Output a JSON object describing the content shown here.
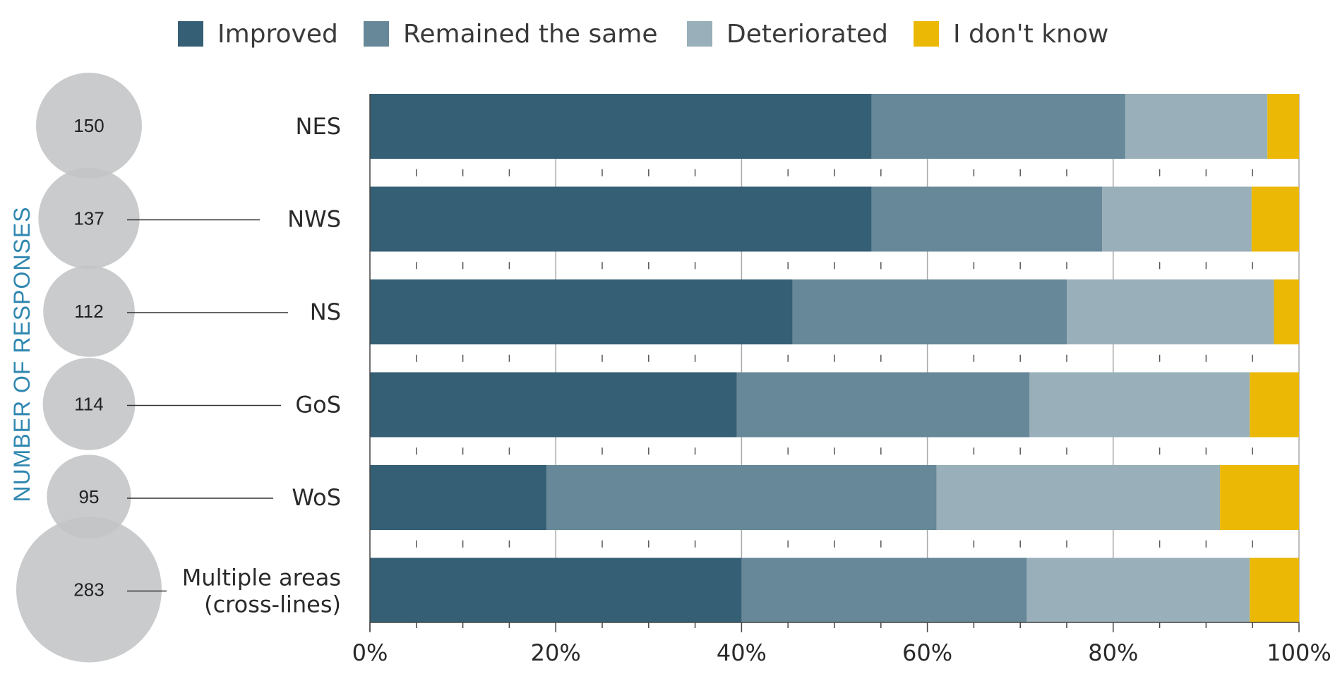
{
  "chart_data": {
    "type": "bar",
    "orientation": "horizontal",
    "stacked": true,
    "percent_stacked": true,
    "categories": [
      "NES",
      "NWS",
      "NS",
      "GoS",
      "WoS",
      "Multiple areas\n(cross-lines)"
    ],
    "series": [
      {
        "name": "Improved",
        "color": "#355f75",
        "values": [
          54,
          54,
          45.5,
          39.5,
          19,
          40
        ]
      },
      {
        "name": "Remained the same",
        "color": "#678898",
        "values": [
          27.3,
          24.8,
          29.5,
          31.5,
          42,
          30.7
        ]
      },
      {
        "name": "Deteriorated",
        "color": "#99afb9",
        "values": [
          15.3,
          16.1,
          22.3,
          23.7,
          30.5,
          24
        ]
      },
      {
        "name": "I don't know",
        "color": "#ebb806",
        "values": [
          3.4,
          5.1,
          2.7,
          5.3,
          8.5,
          5.3
        ]
      }
    ],
    "xlim": [
      0,
      100
    ],
    "x_ticks": [
      "0%",
      "20%",
      "40%",
      "60%",
      "80%",
      "100%"
    ],
    "grid": true,
    "legend_position": "top",
    "responses_label": "NUMBER OF RESPONSES",
    "responses": [
      150,
      137,
      112,
      114,
      95,
      283
    ],
    "bubble_color": "#c2c4c6",
    "side_label_color": "#2f87b0"
  }
}
